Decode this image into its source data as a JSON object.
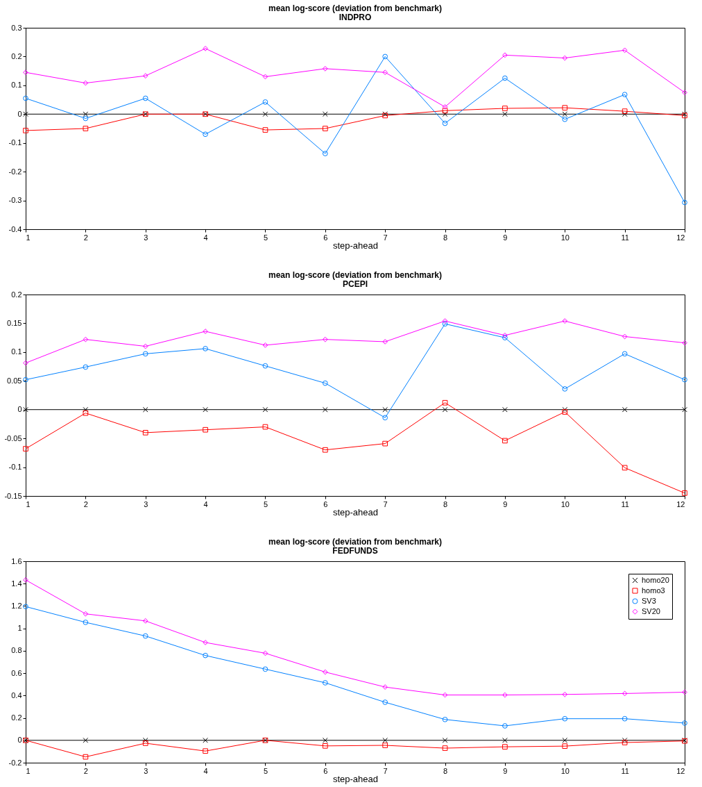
{
  "chart_data": [
    {
      "type": "line",
      "title": "mean log-score (deviation from benchmark)",
      "subtitle": "INDPRO",
      "xlabel": "step-ahead",
      "x": [
        1,
        2,
        3,
        4,
        5,
        6,
        7,
        8,
        9,
        10,
        11,
        12
      ],
      "xlim": [
        1,
        12
      ],
      "xticks": [
        1,
        2,
        3,
        4,
        5,
        6,
        7,
        8,
        9,
        10,
        11,
        12
      ],
      "ylim": [
        -0.4,
        0.3
      ],
      "yticks": [
        -0.4,
        -0.3,
        -0.2,
        -0.1,
        0,
        0.1,
        0.2,
        0.3
      ],
      "grid": false,
      "legend": false,
      "series": [
        {
          "color": "#000000",
          "marker": "cross",
          "values": [
            0,
            0,
            0,
            0,
            0,
            0,
            0,
            0,
            0,
            0,
            0,
            0
          ]
        },
        {
          "color": "#ff0000",
          "marker": "square",
          "values": [
            -0.057,
            -0.05,
            0,
            0,
            -0.055,
            -0.05,
            -0.005,
            0.012,
            0.02,
            0.022,
            0.01,
            -0.005
          ]
        },
        {
          "color": "#0080ff",
          "marker": "circle",
          "values": [
            0.055,
            -0.015,
            0.055,
            -0.07,
            0.042,
            -0.137,
            0.2,
            -0.032,
            0.125,
            -0.018,
            0.068,
            -0.307
          ]
        },
        {
          "color": "#ff00ff",
          "marker": "diamond",
          "values": [
            0.145,
            0.108,
            0.133,
            0.228,
            0.13,
            0.158,
            0.145,
            0.025,
            0.205,
            0.195,
            0.222,
            0.075
          ]
        }
      ]
    },
    {
      "type": "line",
      "title": "mean log-score (deviation from benchmark)",
      "subtitle": "PCEPI",
      "xlabel": "step-ahead",
      "x": [
        1,
        2,
        3,
        4,
        5,
        6,
        7,
        8,
        9,
        10,
        11,
        12
      ],
      "xlim": [
        1,
        12
      ],
      "xticks": [
        1,
        2,
        3,
        4,
        5,
        6,
        7,
        8,
        9,
        10,
        11,
        12
      ],
      "ylim": [
        -0.15,
        0.2
      ],
      "yticks": [
        -0.15,
        -0.1,
        -0.05,
        0,
        0.05,
        0.1,
        0.15,
        0.2
      ],
      "grid": false,
      "legend": false,
      "series": [
        {
          "color": "#000000",
          "marker": "cross",
          "values": [
            0,
            0,
            0,
            0,
            0,
            0,
            0,
            0,
            0,
            0,
            0,
            0
          ]
        },
        {
          "color": "#ff0000",
          "marker": "square",
          "values": [
            -0.068,
            -0.006,
            -0.04,
            -0.035,
            -0.03,
            -0.07,
            -0.059,
            0.012,
            -0.054,
            -0.004,
            -0.101,
            -0.145
          ]
        },
        {
          "color": "#0080ff",
          "marker": "circle",
          "values": [
            0.052,
            0.074,
            0.097,
            0.106,
            0.076,
            0.046,
            -0.014,
            0.149,
            0.125,
            0.036,
            0.097,
            0.052
          ]
        },
        {
          "color": "#ff00ff",
          "marker": "diamond",
          "values": [
            0.081,
            0.122,
            0.11,
            0.136,
            0.112,
            0.122,
            0.118,
            0.154,
            0.129,
            0.154,
            0.127,
            0.116
          ]
        }
      ]
    },
    {
      "type": "line",
      "title": "mean log-score (deviation from benchmark)",
      "subtitle": "FEDFUNDS",
      "xlabel": "step-ahead",
      "x": [
        1,
        2,
        3,
        4,
        5,
        6,
        7,
        8,
        9,
        10,
        11,
        12
      ],
      "xlim": [
        1,
        12
      ],
      "xticks": [
        1,
        2,
        3,
        4,
        5,
        6,
        7,
        8,
        9,
        10,
        11,
        12
      ],
      "ylim": [
        -0.2,
        1.6
      ],
      "yticks": [
        -0.2,
        0,
        0.2,
        0.4,
        0.6,
        0.8,
        1,
        1.2,
        1.4,
        1.6
      ],
      "grid": false,
      "legend": "top right",
      "series": [
        {
          "name": "homo20",
          "color": "#000000",
          "marker": "cross",
          "values": [
            0,
            0,
            0,
            0,
            0,
            0,
            0,
            0,
            0,
            0,
            0,
            0
          ]
        },
        {
          "name": "homo3",
          "color": "#ff0000",
          "marker": "square",
          "values": [
            0,
            -0.148,
            -0.026,
            -0.096,
            0,
            -0.05,
            -0.045,
            -0.07,
            -0.058,
            -0.052,
            -0.02,
            -0.006
          ]
        },
        {
          "name": "SV3",
          "color": "#0080ff",
          "marker": "circle",
          "values": [
            1.195,
            1.054,
            0.932,
            0.758,
            0.636,
            0.514,
            0.34,
            0.186,
            0.129,
            0.193,
            0.193,
            0.154
          ]
        },
        {
          "name": "SV20",
          "color": "#ff00ff",
          "marker": "diamond",
          "values": [
            1.433,
            1.13,
            1.067,
            0.874,
            0.778,
            0.61,
            0.476,
            0.405,
            0.405,
            0.41,
            0.418,
            0.43
          ]
        }
      ]
    }
  ]
}
